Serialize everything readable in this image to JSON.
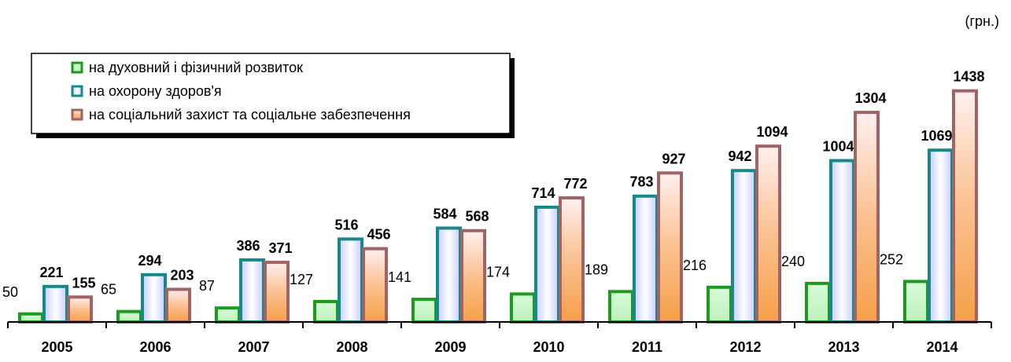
{
  "chart_data": {
    "type": "bar",
    "unit_label": "(грн.)",
    "categories": [
      "2005",
      "2006",
      "2007",
      "2008",
      "2009",
      "2010",
      "2011",
      "2012",
      "2013",
      "2014"
    ],
    "series": [
      {
        "name": "на духовний і фізичний розвиток",
        "color": "#1e9a1e",
        "values": [
          50,
          65,
          87,
          127,
          141,
          174,
          189,
          216,
          240,
          252
        ]
      },
      {
        "name": "на охорону здоров'я",
        "color": "#168a8a",
        "values": [
          221,
          294,
          386,
          516,
          584,
          714,
          783,
          942,
          1004,
          1069
        ]
      },
      {
        "name": "на соціальний захист та соціальне забезпечення",
        "color": "#a06464",
        "values": [
          155,
          203,
          371,
          456,
          568,
          772,
          927,
          1094,
          1304,
          1438
        ]
      }
    ],
    "ylim": [
      0,
      1500
    ],
    "legend": "top-left"
  }
}
